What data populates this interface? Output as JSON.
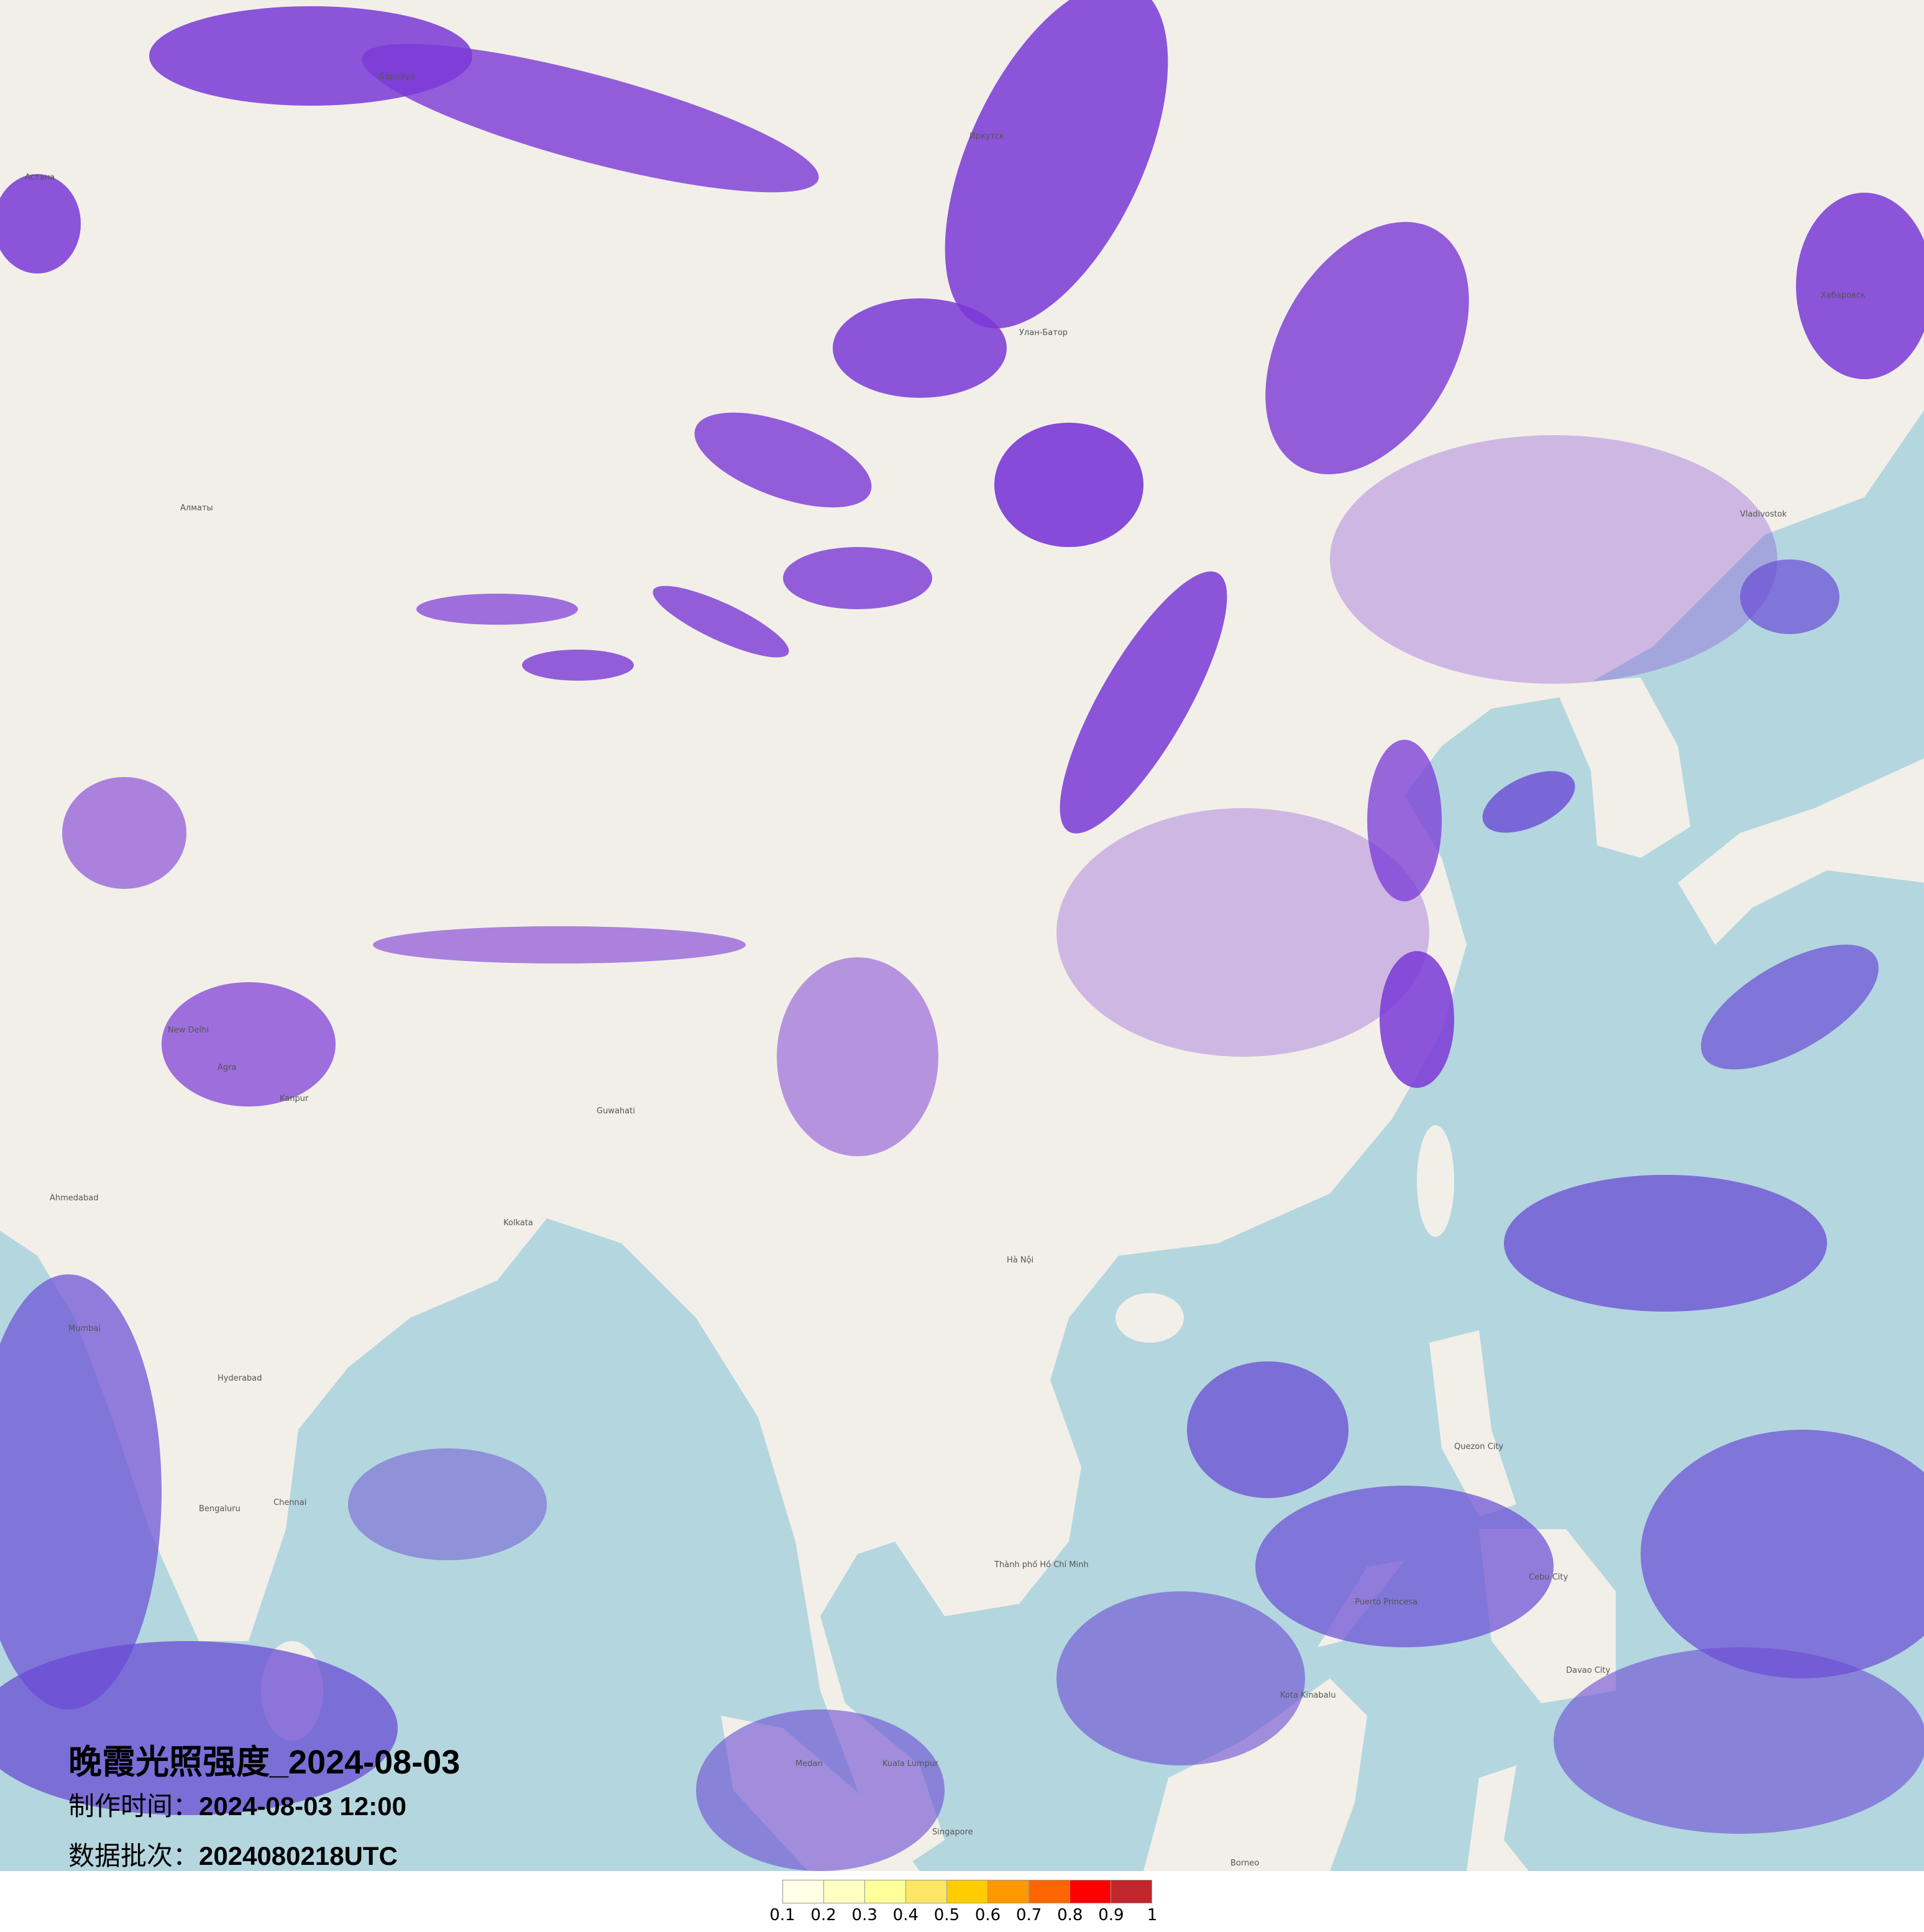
{
  "title": "晚霞光照强度_2024-08-03",
  "production_time": {
    "label": "制作时间：",
    "value": "2024-08-03 12:00"
  },
  "data_batch": {
    "label": "数据批次：",
    "value": "2024080218UTC"
  },
  "colors": {
    "land": "#f2efe9",
    "sea": "#b4d6df",
    "overlay_purple": "#7a38d6",
    "overlay_blue_purple": "#6a4bd4"
  },
  "legend": {
    "colors": [
      "#ffffe6",
      "#ffffc2",
      "#ffff99",
      "#ffe566",
      "#ffcc00",
      "#ff9900",
      "#ff6600",
      "#ff0000",
      "#c1272d"
    ],
    "labels": [
      "0.1",
      "0.2",
      "0.3",
      "0.4",
      "0.5",
      "0.6",
      "0.7",
      "0.8",
      "0.9",
      "1"
    ]
  },
  "places": [
    {
      "name": "Иркутск"
    },
    {
      "name": "Улан-Батор"
    },
    {
      "name": "Хабаровск"
    },
    {
      "name": "Астана"
    },
    {
      "name": "Барнаул"
    },
    {
      "name": "Алматы"
    },
    {
      "name": "New Delhi"
    },
    {
      "name": "Agra"
    },
    {
      "name": "Kanpur"
    },
    {
      "name": "Kolkata"
    },
    {
      "name": "Guwahati"
    },
    {
      "name": "Ahmedabad"
    },
    {
      "name": "Mumbai"
    },
    {
      "name": "Hyderabad"
    },
    {
      "name": "Bengaluru"
    },
    {
      "name": "Chennai"
    },
    {
      "name": "Hà Nội"
    },
    {
      "name": "Thành phố Hồ Chí Minh"
    },
    {
      "name": "Kuala Lumpur"
    },
    {
      "name": "Singapore"
    },
    {
      "name": "Medan"
    },
    {
      "name": "Kota Kinabalu"
    },
    {
      "name": "Puerto Princesa"
    },
    {
      "name": "Cebu City"
    },
    {
      "name": "Quezon City"
    },
    {
      "name": "Davao City"
    },
    {
      "name": "Vladivostok"
    },
    {
      "name": "Borneo"
    }
  ]
}
